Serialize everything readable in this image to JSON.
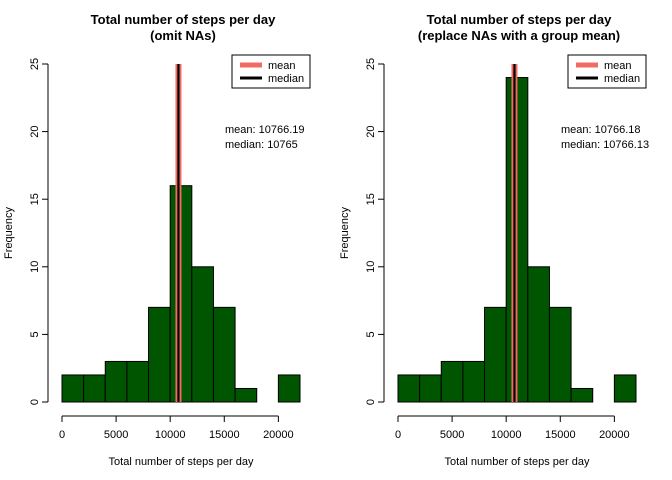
{
  "chart_data": [
    {
      "type": "bar",
      "title": "Total number of steps per day",
      "subtitle": "(omit NAs)",
      "xlabel": "Total number of steps per day",
      "ylabel": "Frequency",
      "bin_edges": [
        0,
        2000,
        4000,
        6000,
        8000,
        10000,
        11000,
        12000,
        14000,
        16000,
        18000,
        20000,
        22000
      ],
      "values": [
        2,
        2,
        3,
        3,
        7,
        16,
        16,
        10,
        7,
        1,
        0,
        2
      ],
      "xlim": [
        0,
        22000
      ],
      "ylim": [
        0,
        25
      ],
      "x_ticks": [
        "0",
        "5000",
        "10000",
        "15000",
        "20000"
      ],
      "x_tick_values": [
        0,
        5000,
        10000,
        15000,
        20000
      ],
      "y_ticks": [
        "0",
        "5",
        "10",
        "15",
        "20",
        "25"
      ],
      "y_tick_values": [
        0,
        5,
        10,
        15,
        20,
        25
      ],
      "mean": 10766.19,
      "median": 10765,
      "mean_label": "mean: 10766.19",
      "median_label": "median: 10765",
      "bar_color": "#005500",
      "mean_line_color": "#f26b63",
      "median_line_color": "#000000",
      "legend": {
        "position": "top-right",
        "entries": [
          {
            "label": "mean",
            "color": "#f26b63"
          },
          {
            "label": "median",
            "color": "#000000"
          }
        ]
      }
    },
    {
      "type": "bar",
      "title": "Total number of steps per day",
      "subtitle": "(replace NAs with a group mean)",
      "xlabel": "Total number of steps per day",
      "ylabel": "Frequency",
      "bin_edges": [
        0,
        2000,
        4000,
        6000,
        8000,
        10000,
        11000,
        12000,
        14000,
        16000,
        18000,
        20000,
        22000
      ],
      "values": [
        2,
        2,
        3,
        3,
        7,
        24,
        24,
        10,
        7,
        1,
        0,
        2
      ],
      "xlim": [
        0,
        22000
      ],
      "ylim": [
        0,
        25
      ],
      "x_ticks": [
        "0",
        "5000",
        "10000",
        "15000",
        "20000"
      ],
      "x_tick_values": [
        0,
        5000,
        10000,
        15000,
        20000
      ],
      "y_ticks": [
        "0",
        "5",
        "10",
        "15",
        "20",
        "25"
      ],
      "y_tick_values": [
        0,
        5,
        10,
        15,
        20,
        25
      ],
      "mean": 10766.18,
      "median": 10766.13,
      "mean_label": "mean: 10766.18",
      "median_label": "median: 10766.13",
      "bar_color": "#005500",
      "mean_line_color": "#f26b63",
      "median_line_color": "#000000",
      "legend": {
        "position": "top-right",
        "entries": [
          {
            "label": "mean",
            "color": "#f26b63"
          },
          {
            "label": "median",
            "color": "#000000"
          }
        ]
      }
    }
  ]
}
